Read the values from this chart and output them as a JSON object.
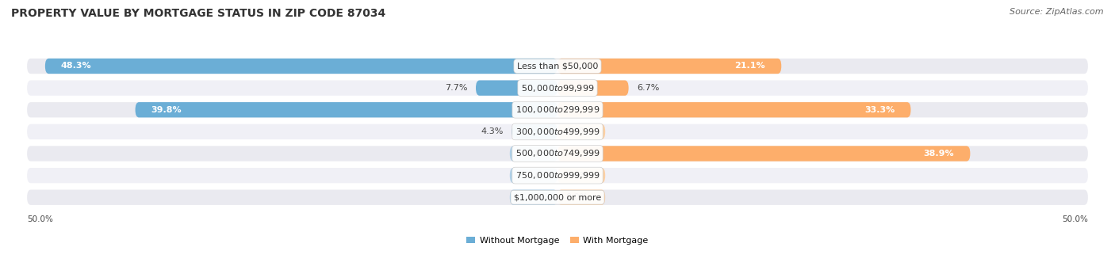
{
  "title": "PROPERTY VALUE BY MORTGAGE STATUS IN ZIP CODE 87034",
  "source": "Source: ZipAtlas.com",
  "categories": [
    "Less than $50,000",
    "$50,000 to $99,999",
    "$100,000 to $299,999",
    "$300,000 to $499,999",
    "$500,000 to $749,999",
    "$750,000 to $999,999",
    "$1,000,000 or more"
  ],
  "without_mortgage": [
    48.3,
    7.7,
    39.8,
    4.3,
    0.0,
    0.0,
    0.0
  ],
  "with_mortgage": [
    21.1,
    6.7,
    33.3,
    0.0,
    38.9,
    0.0,
    0.0
  ],
  "xlim": 50.0,
  "color_without": "#6BAED6",
  "color_without_light": "#AED0E8",
  "color_with": "#FDAE6B",
  "color_with_light": "#FDD0A2",
  "background_bar": "#EAEAF0",
  "background_alt": "#F0F0F6",
  "title_fontsize": 10,
  "source_fontsize": 8,
  "bar_label_fontsize": 8,
  "cat_label_fontsize": 8,
  "axis_label_left": "50.0%",
  "axis_label_right": "50.0%",
  "legend_label_without": "Without Mortgage",
  "legend_label_with": "With Mortgage"
}
